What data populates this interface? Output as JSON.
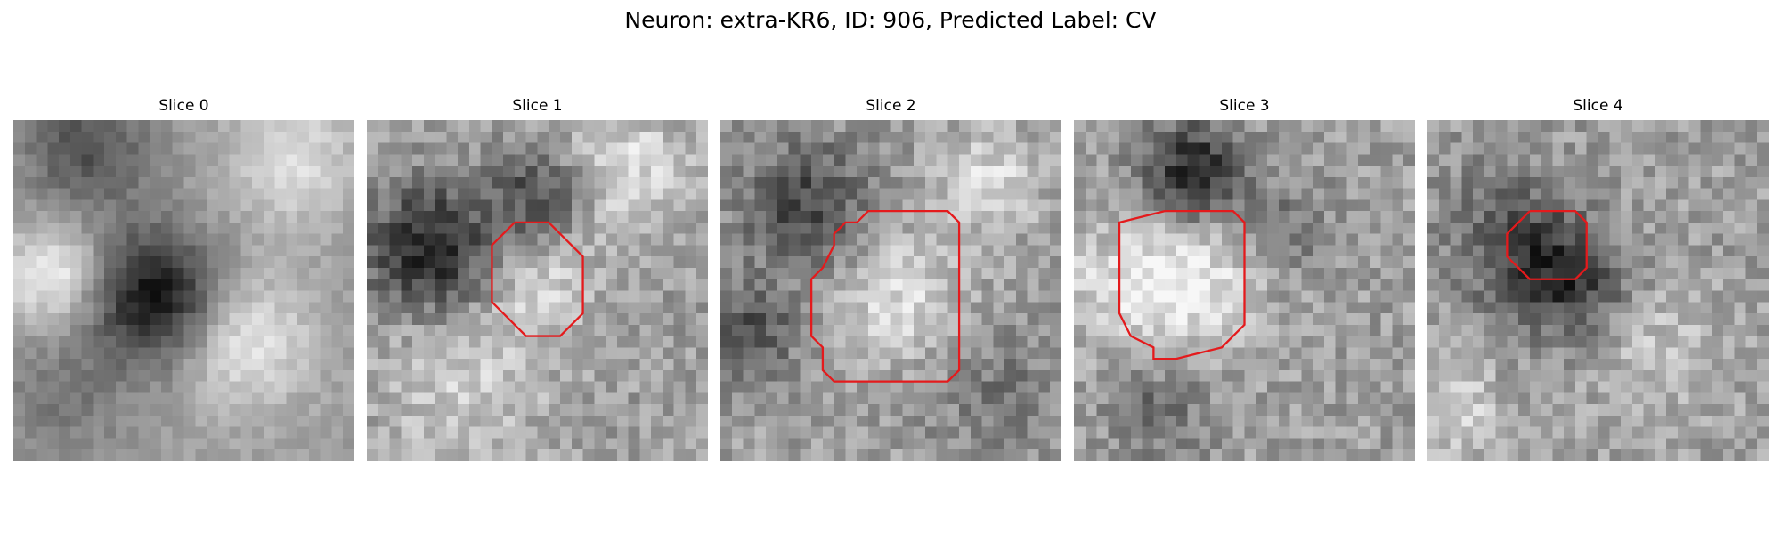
{
  "figure": {
    "title": "Neuron: extra-KR6, ID: 906, Predicted Label: CV"
  },
  "colors": {
    "background": "#ffffff",
    "contour": "#e41a1c",
    "colormap": "grayscale"
  },
  "panels": [
    {
      "title": "Slice 0",
      "has_contour": false,
      "contour": []
    },
    {
      "title": "Slice 1",
      "has_contour": true,
      "contour": [
        [
          13,
          9
        ],
        [
          16,
          9
        ],
        [
          19,
          12
        ],
        [
          19,
          17
        ],
        [
          17,
          19
        ],
        [
          14,
          19
        ],
        [
          13,
          18
        ],
        [
          11,
          16
        ],
        [
          11,
          11
        ],
        [
          13,
          9
        ]
      ]
    },
    {
      "title": "Slice 2",
      "has_contour": true,
      "contour": [
        [
          16,
          8
        ],
        [
          20,
          8
        ],
        [
          21,
          9
        ],
        [
          21,
          22
        ],
        [
          20,
          23
        ],
        [
          10,
          23
        ],
        [
          9,
          22
        ],
        [
          9,
          20
        ],
        [
          8,
          19
        ],
        [
          8,
          14
        ],
        [
          9,
          13
        ],
        [
          10,
          11
        ],
        [
          10,
          10
        ],
        [
          11,
          9
        ],
        [
          12,
          9
        ],
        [
          13,
          8
        ],
        [
          16,
          8
        ]
      ]
    },
    {
      "title": "Slice 3",
      "has_contour": true,
      "contour": [
        [
          8,
          8
        ],
        [
          14,
          8
        ],
        [
          15,
          9
        ],
        [
          15,
          18
        ],
        [
          14,
          19
        ],
        [
          13,
          20
        ],
        [
          9,
          21
        ],
        [
          7,
          21
        ],
        [
          7,
          20
        ],
        [
          5,
          19
        ],
        [
          4,
          17
        ],
        [
          4,
          9
        ],
        [
          8,
          8
        ]
      ]
    },
    {
      "title": "Slice 4",
      "has_contour": true,
      "contour": [
        [
          9,
          8
        ],
        [
          13,
          8
        ],
        [
          14,
          9
        ],
        [
          14,
          13
        ],
        [
          13,
          14
        ],
        [
          11,
          14
        ],
        [
          9,
          14
        ],
        [
          8,
          13
        ],
        [
          7,
          12
        ],
        [
          7,
          10
        ],
        [
          8,
          9
        ],
        [
          9,
          8
        ]
      ]
    }
  ]
}
